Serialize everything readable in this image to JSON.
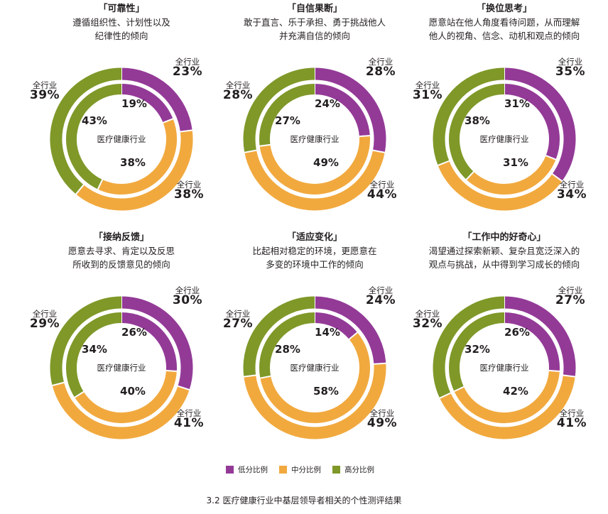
{
  "colors": {
    "low": "#933a97",
    "mid": "#f1a93e",
    "high": "#7f9828"
  },
  "center_label": "医疗健康行业",
  "outer_label": "全行业",
  "legend": [
    {
      "key": "low",
      "label": "低分比例"
    },
    {
      "key": "mid",
      "label": "中分比例"
    },
    {
      "key": "high",
      "label": "高分比例"
    }
  ],
  "caption": "3.2 医疗健康行业中基层领导者相关的个性测评结果",
  "chart_data": [
    {
      "type": "pie",
      "title": "「可靠性」",
      "subtitle": "遵循组织性、计划性以及\n纪律性的倾向",
      "series": [
        {
          "name": "全行业",
          "values": [
            23,
            38,
            39
          ]
        },
        {
          "name": "医疗健康行业",
          "values": [
            19,
            38,
            43
          ]
        }
      ]
    },
    {
      "type": "pie",
      "title": "「自信果断」",
      "subtitle": "敢于直言、乐于承担、勇于挑战他人\n并充满自信的倾向",
      "series": [
        {
          "name": "全行业",
          "values": [
            28,
            44,
            28
          ]
        },
        {
          "name": "医疗健康行业",
          "values": [
            24,
            49,
            27
          ]
        }
      ]
    },
    {
      "type": "pie",
      "title": "「换位思考」",
      "subtitle": "愿意站在他人角度看待问题，从而理解\n他人的视角、信念、动机和观点的倾向",
      "series": [
        {
          "name": "全行业",
          "values": [
            35,
            34,
            31
          ]
        },
        {
          "name": "医疗健康行业",
          "values": [
            31,
            31,
            38
          ]
        }
      ]
    },
    {
      "type": "pie",
      "title": "「接纳反馈」",
      "subtitle": "愿意去寻求、肯定以及反思\n所收到的反馈意见的倾向",
      "series": [
        {
          "name": "全行业",
          "values": [
            30,
            41,
            29
          ]
        },
        {
          "name": "医疗健康行业",
          "values": [
            26,
            40,
            34
          ]
        }
      ]
    },
    {
      "type": "pie",
      "title": "「适应变化」",
      "subtitle": "比起相对稳定的环境，更愿意在\n多变的环境中工作的倾向",
      "series": [
        {
          "name": "全行业",
          "values": [
            24,
            49,
            27
          ]
        },
        {
          "name": "医疗健康行业",
          "values": [
            14,
            58,
            28
          ]
        }
      ]
    },
    {
      "type": "pie",
      "title": "「工作中的好奇心」",
      "subtitle": "渴望通过探索新颖、复杂且宽泛深入的\n观点与挑战，从中得到学习成长的倾向",
      "series": [
        {
          "name": "全行业",
          "values": [
            27,
            41,
            32
          ]
        },
        {
          "name": "医疗健康行业",
          "values": [
            26,
            42,
            32
          ]
        }
      ]
    }
  ]
}
